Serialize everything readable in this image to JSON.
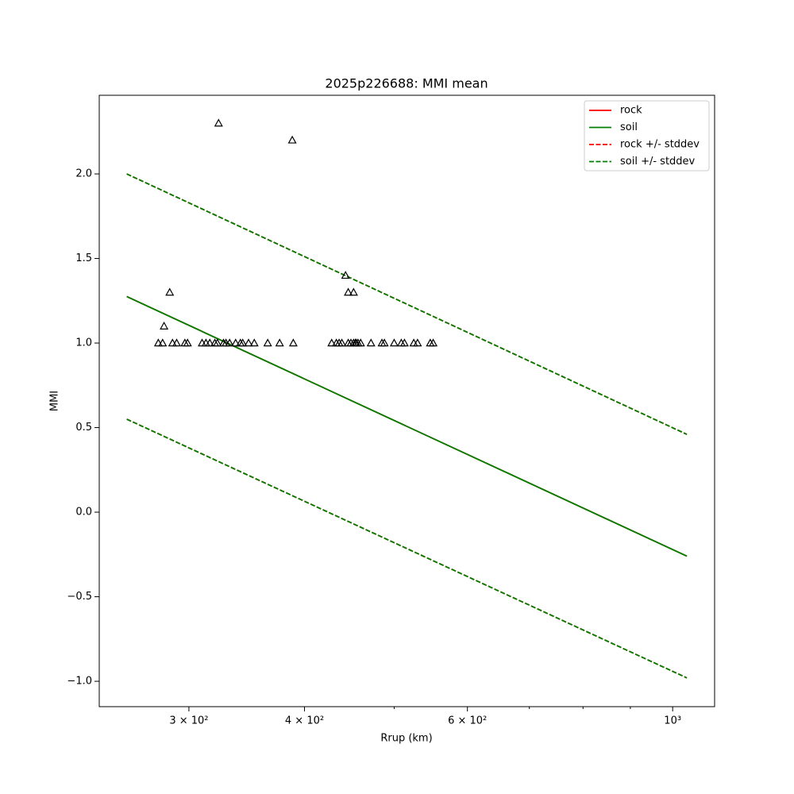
{
  "chart_data": {
    "type": "scatter-line",
    "title": "2025p226688: MMI mean",
    "x_label": "Rrup (km)",
    "y_label": "MMI",
    "xscale": "log",
    "xlim": [
      240,
      1110
    ],
    "ylim": [
      -1.15,
      2.465
    ],
    "xticks": [
      {
        "value": 300,
        "label": "3 × 10²"
      },
      {
        "value": 400,
        "label": "4 × 10²"
      },
      {
        "value": 600,
        "label": "6 × 10²"
      },
      {
        "value": 1000,
        "label": "10³"
      }
    ],
    "xminorticks": [
      500,
      700,
      800,
      900
    ],
    "yticks": [
      {
        "value": -1,
        "label": "−1.0"
      },
      {
        "value": -0.5,
        "label": "−0.5"
      },
      {
        "value": 0,
        "label": "0.0"
      },
      {
        "value": 0.5,
        "label": "0.5"
      },
      {
        "value": 1,
        "label": "1.0"
      },
      {
        "value": 1.5,
        "label": "1.5"
      },
      {
        "value": 2,
        "label": "2.0"
      }
    ],
    "legend": "upper right",
    "lines": [
      {
        "name": "rock",
        "color": "red",
        "dashed": false,
        "x": [
          257,
          1036
        ],
        "values": [
          1.275,
          -0.26
        ]
      },
      {
        "name": "soil",
        "color": "green",
        "dashed": false,
        "x": [
          257,
          1036
        ],
        "values": [
          1.275,
          -0.26
        ]
      },
      {
        "name": "rock +/- stddev",
        "color": "red",
        "dashed": true,
        "x": [
          257,
          1036
        ],
        "upper": [
          2.0,
          0.46
        ],
        "lower": [
          0.55,
          -0.98
        ]
      },
      {
        "name": "soil +/- stddev",
        "color": "green",
        "dashed": true,
        "x": [
          257,
          1036
        ],
        "upper": [
          2.0,
          0.46
        ],
        "lower": [
          0.55,
          -0.98
        ]
      }
    ],
    "points": {
      "color": "black",
      "x": [
        278,
        281,
        288,
        291,
        297,
        299,
        310,
        313,
        316,
        320,
        322,
        327,
        329,
        332,
        337,
        341,
        343,
        348,
        353,
        365,
        376,
        389,
        428,
        433,
        436,
        439,
        446,
        449,
        452,
        454,
        455,
        457,
        460,
        472,
        485,
        488,
        500,
        509,
        513,
        525,
        530,
        547,
        551,
        323,
        388,
        286,
        282,
        443,
        446,
        452
      ],
      "values": [
        1,
        1,
        1,
        1,
        1,
        1,
        1,
        1,
        1,
        1,
        1,
        1,
        1,
        1,
        1,
        1,
        1,
        1,
        1,
        1,
        1,
        1,
        1,
        1,
        1,
        1,
        1,
        1,
        1,
        1,
        1,
        1,
        1,
        1,
        1,
        1,
        1,
        1,
        1,
        1,
        1,
        1,
        1,
        2.3,
        2.2,
        1.3,
        1.1,
        1.4,
        1.3,
        1.3
      ]
    }
  }
}
